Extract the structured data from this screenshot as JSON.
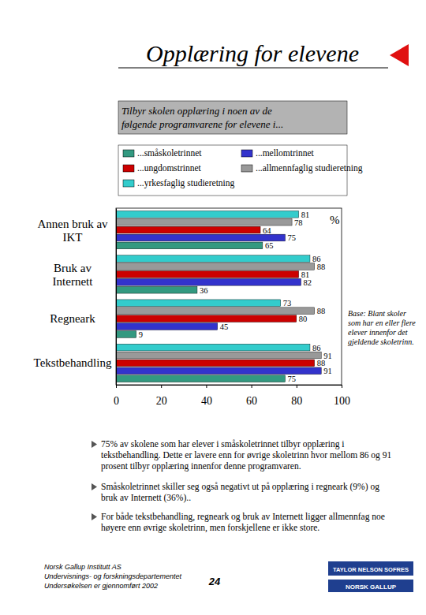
{
  "chart_data": {
    "type": "bar",
    "orientation": "horizontal",
    "title": "Tilbyr skolen opplæring i noen av de følgende programvarene for elevene i...",
    "xlabel": "%",
    "note": "Base: Blant skoler som har en eller flere elever innenfor det gjeldende skoletrinn.",
    "categories": [
      "Annen bruk av\nIKT",
      "Bruk av\nInternett",
      "Regneark",
      "Tekstbehandling"
    ],
    "series": [
      {
        "name": "...småskoletrinnet",
        "color": "#339980",
        "values": [
          65,
          36,
          9,
          75
        ]
      },
      {
        "name": "...mellomtrinnet",
        "color": "#3333cc",
        "values": [
          75,
          82,
          45,
          91
        ]
      },
      {
        "name": "...ungdomstrinnet",
        "color": "#cc0000",
        "values": [
          64,
          81,
          80,
          88
        ]
      },
      {
        "name": "...allmennfaglig studieretning",
        "color": "#999999",
        "values": [
          78,
          88,
          88,
          91
        ]
      },
      {
        "name": "...yrkesfaglig studieretning",
        "color": "#33cccc",
        "values": [
          81,
          86,
          73,
          86
        ]
      }
    ],
    "xlim": [
      0,
      100
    ],
    "xticks": [
      0,
      20,
      40,
      60,
      80,
      100
    ],
    "data_labels": true,
    "legend": "top",
    "grid": false
  },
  "page": {
    "heading": "Opplæring for elevene",
    "bullets": [
      "75% av skolene som har elever i småskoletrinnet tilbyr opplæring i tekstbehandling. Dette er lavere enn for øvrige skoletrinn hvor mellom 86 og 91 prosent tilbyr opplæring innenfor denne programvaren.",
      "Småskoletrinnet skiller seg også negativt ut på opplæring i regneark (9%) og bruk av Internett (36%)..",
      "For både tekstbehandling, regneark og bruk av Internett ligger allmennfag noe høyere enn øvrige skoletrinn, men forskjellene er ikke store."
    ],
    "footer": [
      "Norsk Gallup Institutt AS",
      "Undervisnings- og forskningsdepartementet",
      "Undersøkelsen er gjennomført 2002"
    ],
    "page_number": "24",
    "logo": [
      "TAYLOR NELSON SOFRES",
      "NORSK GALLUP"
    ]
  }
}
